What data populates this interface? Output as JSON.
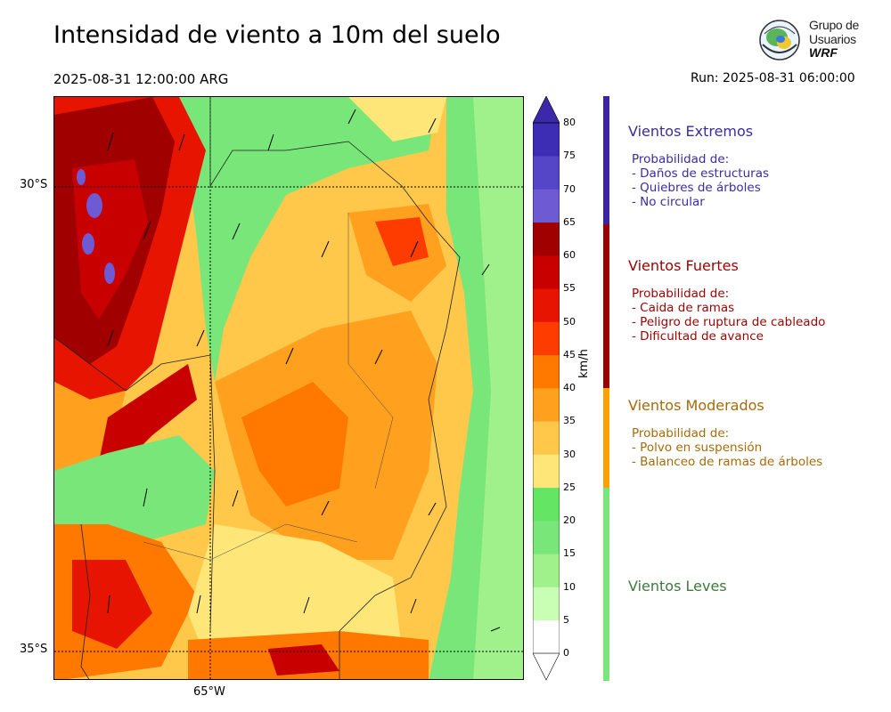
{
  "title": "Intensidad de viento a 10m del suelo",
  "valid_time": "2025-08-31 12:00:00 ARG",
  "run_time": "Run: 2025-08-31 06:00:00",
  "logo": {
    "line1": "Grupo de",
    "line2": "Usuarios",
    "line3": "WRF"
  },
  "map": {
    "lat_labels": [
      "30°S",
      "35°S"
    ],
    "lon_labels": [
      "65°W"
    ]
  },
  "colorbar": {
    "unit": "km/h",
    "ticks": [
      "0",
      "5",
      "10",
      "15",
      "20",
      "25",
      "30",
      "35",
      "40",
      "45",
      "50",
      "55",
      "60",
      "65",
      "70",
      "75",
      "80"
    ],
    "colors": [
      "#ffffff",
      "#c8ffb4",
      "#a0f08c",
      "#78e678",
      "#64e664",
      "#ffe678",
      "#ffc84b",
      "#ffa01e",
      "#ff7800",
      "#ff3c00",
      "#e61400",
      "#c80000",
      "#a00000",
      "#6e5ad2",
      "#5546c8",
      "#3c2db4",
      "#3c28aa"
    ]
  },
  "categories": [
    {
      "heading": "Vientos Extremos",
      "color": "#3d2aa6",
      "stripe": "#3b22a8",
      "lines": [
        "Probabilidad de:",
        "- Daños de estructuras",
        "- Quiebres de árboles",
        "- No circular"
      ]
    },
    {
      "heading": "Vientos Fuertes",
      "color": "#9e0000",
      "stripe": "#9e0000",
      "lines": [
        "Probabilidad de:",
        "- Caida de ramas",
        "- Peligro de ruptura de cableado",
        "- Dificultad de avance"
      ]
    },
    {
      "heading": "Vientos Moderados",
      "color": "#a86a08",
      "stripe": "#ffa000",
      "lines": [
        "Probabilidad de:",
        "- Polvo en suspensión",
        "- Balanceo de ramas de árboles"
      ]
    },
    {
      "heading": "Vientos Leves",
      "color": "#3d7a3d",
      "stripe": "#78e678",
      "lines": []
    }
  ]
}
